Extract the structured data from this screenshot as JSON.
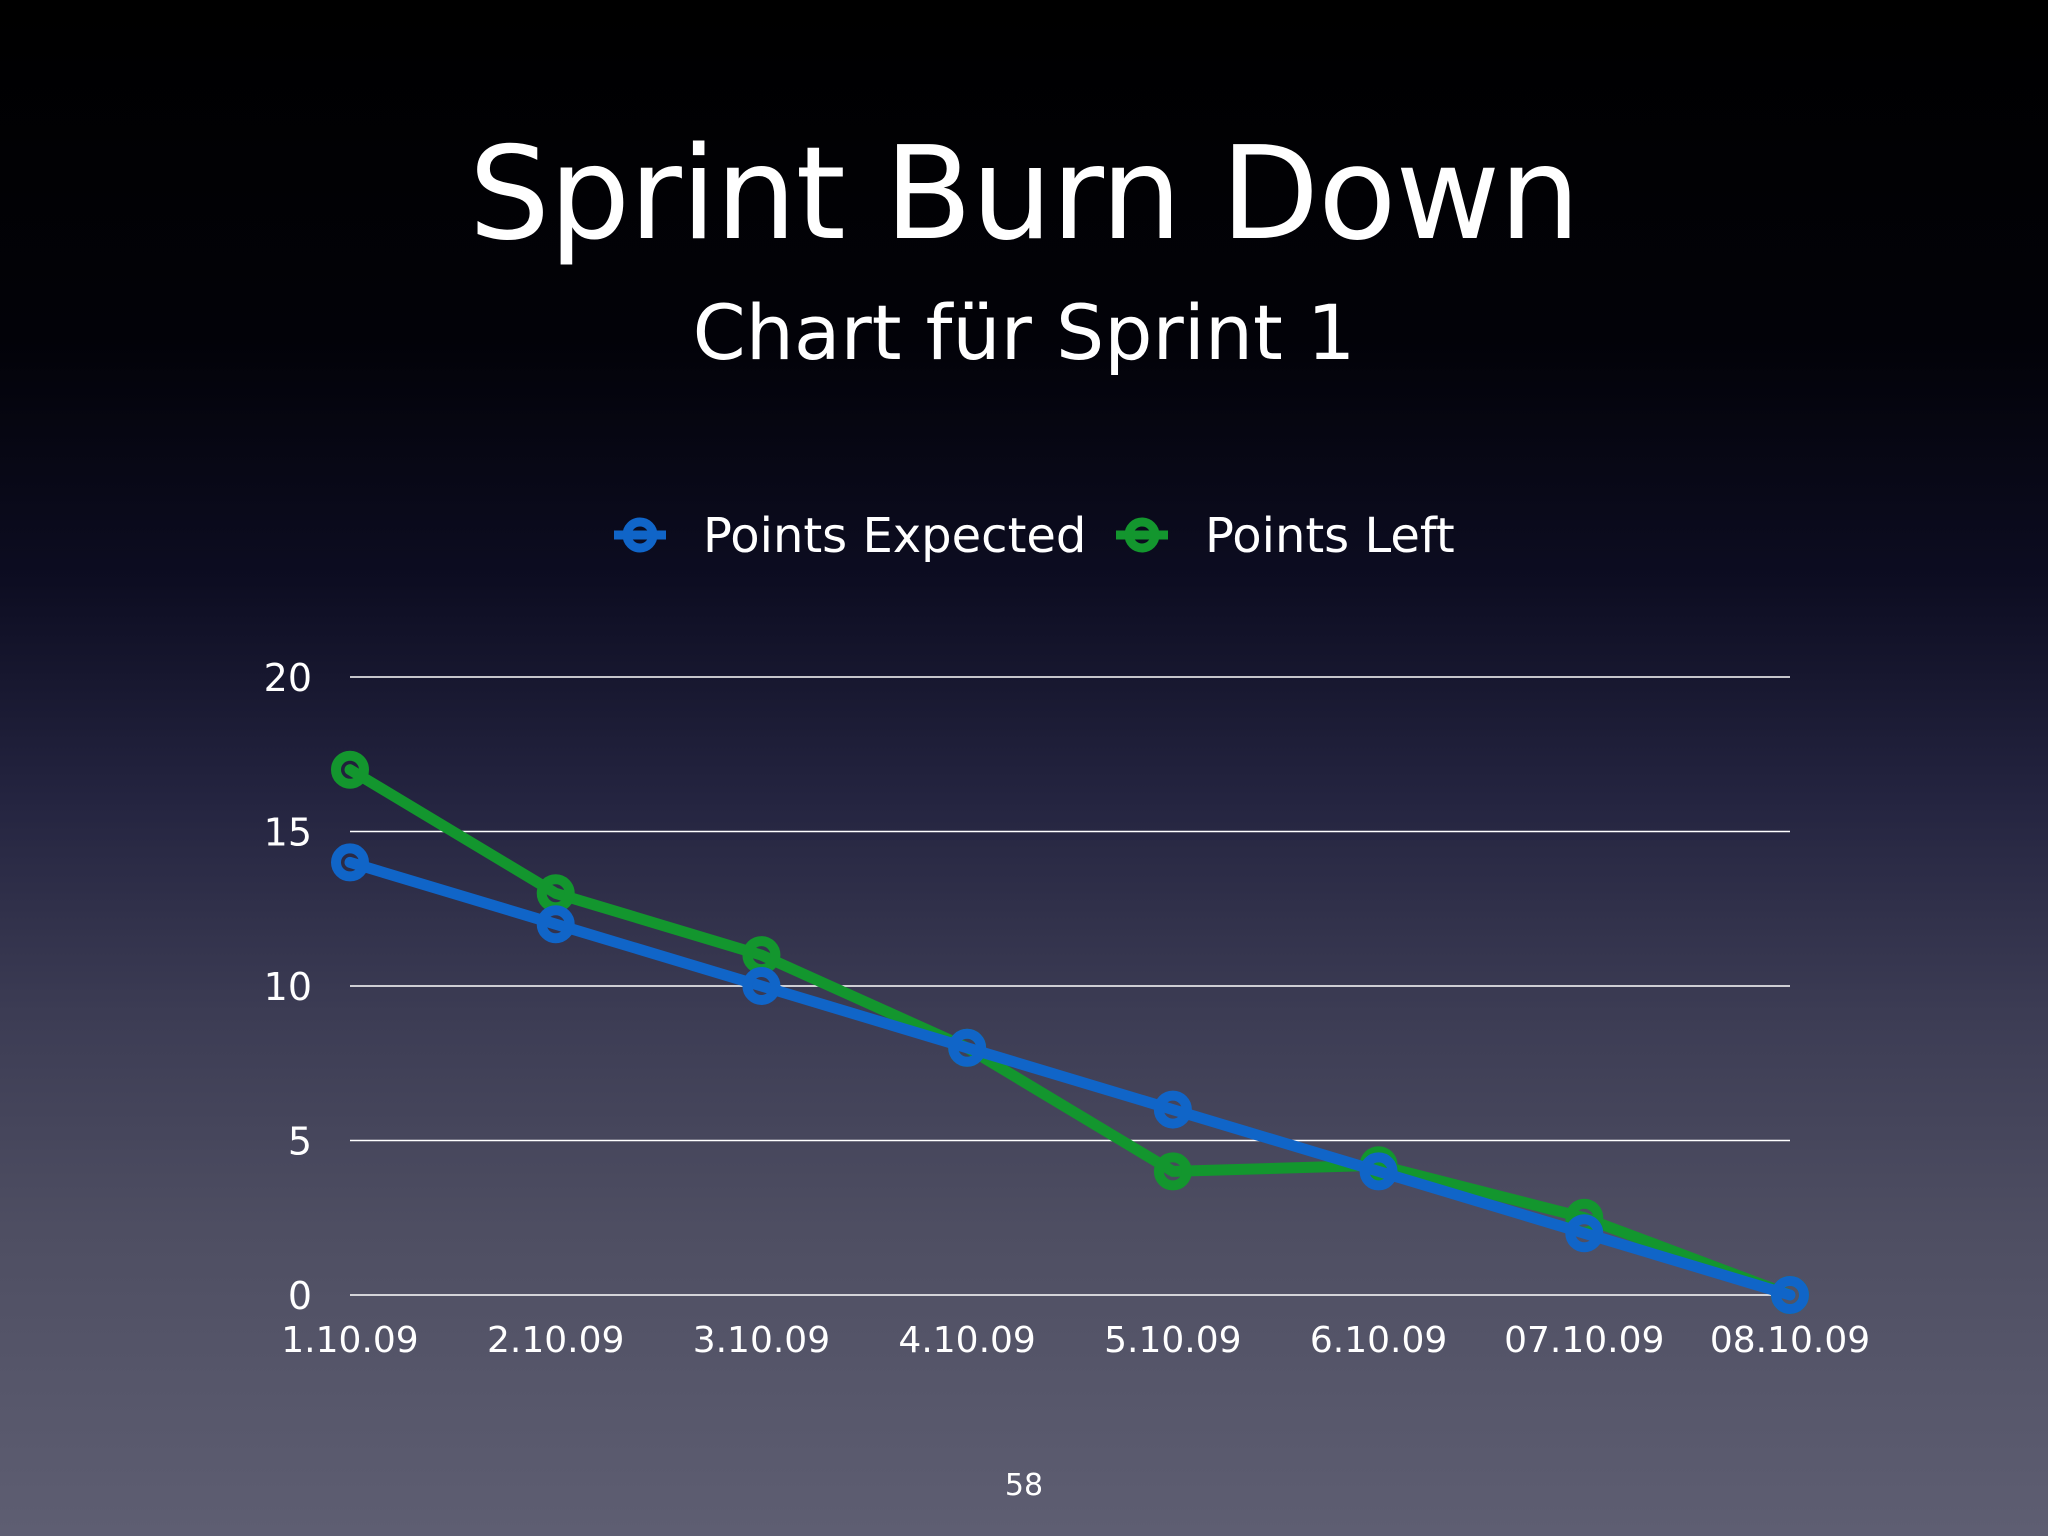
{
  "slide": {
    "title": "Sprint Burn Down",
    "subtitle": "Chart für Sprint 1",
    "page_number": "58"
  },
  "colors": {
    "points_expected": "#1065c8",
    "points_left": "#13962e",
    "grid": "#ffffff",
    "text": "#ffffff"
  },
  "chart_data": {
    "type": "line",
    "title": "",
    "xlabel": "",
    "ylabel": "",
    "categories": [
      "1.10.09",
      "2.10.09",
      "3.10.09",
      "4.10.09",
      "5.10.09",
      "6.10.09",
      "07.10.09",
      "08.10.09"
    ],
    "series": [
      {
        "name": "Points Expected",
        "values": [
          14,
          12,
          10,
          8,
          6,
          4,
          2,
          0
        ]
      },
      {
        "name": "Points Left",
        "values": [
          17,
          13,
          11,
          8,
          4,
          4.2,
          2.5,
          0
        ]
      }
    ],
    "ylim": [
      0,
      20
    ],
    "yticks": [
      "0",
      "5",
      "10",
      "15",
      "20"
    ],
    "grid": true,
    "legend_position": "top-center"
  }
}
